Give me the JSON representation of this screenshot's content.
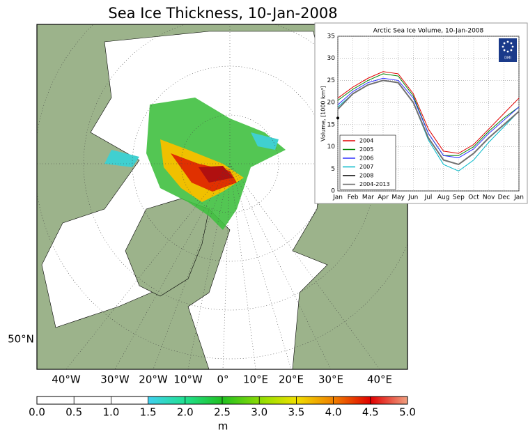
{
  "map": {
    "title": "Sea Ice Thickness, 10-Jan-2008",
    "longitude_labels": [
      "40°W",
      "30°W",
      "20°W",
      "10°W",
      "0°",
      "10°E",
      "20°E",
      "30°E",
      "40°E"
    ],
    "latitude_labels": [
      "50°N"
    ],
    "colorbar": {
      "label": "m",
      "lim": [
        0,
        5
      ],
      "ticks": [
        {
          "value": 0,
          "label": "0.0"
        },
        {
          "value": 0.5,
          "label": "0.5"
        },
        {
          "value": 1,
          "label": "1.0"
        },
        {
          "value": 1.5,
          "label": "1.5"
        },
        {
          "value": 2,
          "label": "2.0"
        },
        {
          "value": 2.5,
          "label": "2.5"
        },
        {
          "value": 3,
          "label": "3.0"
        },
        {
          "value": 3.5,
          "label": "3.5"
        },
        {
          "value": 4,
          "label": "4.0"
        },
        {
          "value": 4.5,
          "label": "4.5"
        },
        {
          "value": 5,
          "label": "5.0"
        }
      ]
    }
  },
  "chart_data": {
    "type": "line",
    "title": "Arctic Sea Ice Volume, 10-Jan-2008",
    "ylabel": "Volume, [1000 km³]",
    "logo_text": "DMI",
    "categories": [
      "Jan",
      "Feb",
      "Mar",
      "Apr",
      "May",
      "Jun",
      "Jul",
      "Aug",
      "Sep",
      "Oct",
      "Nov",
      "Dec",
      "Jan"
    ],
    "ylim": [
      0,
      35
    ],
    "yticks": [
      0,
      5,
      10,
      15,
      20,
      25,
      30,
      35
    ],
    "grid": true,
    "legend": "lower left",
    "series": [
      {
        "name": "2004",
        "color": "#e00000",
        "values": [
          21,
          23.5,
          25.5,
          27,
          26.5,
          22,
          14,
          9,
          8.5,
          10.5,
          14,
          17.5,
          21
        ]
      },
      {
        "name": "2005",
        "color": "#008000",
        "values": [
          20.5,
          23,
          25,
          26.5,
          26,
          21.5,
          13,
          8,
          8,
          10,
          13.5,
          16.5,
          19
        ]
      },
      {
        "name": "2006",
        "color": "#3030ff",
        "values": [
          19.5,
          22.5,
          24.5,
          25.5,
          25,
          21,
          13,
          8,
          7.5,
          9.5,
          13,
          16,
          19
        ]
      },
      {
        "name": "2007",
        "color": "#00b8c8",
        "values": [
          19,
          22,
          24,
          25,
          24.5,
          20,
          11.5,
          6,
          4.5,
          7,
          11,
          14.5,
          18
        ]
      },
      {
        "name": "2008",
        "color": "#000000",
        "values": [
          16.5,
          null,
          null,
          null,
          null,
          null,
          null,
          null,
          null,
          null,
          null,
          null,
          null
        ]
      },
      {
        "name": "2004-2013",
        "color": "#707070",
        "values": [
          18.5,
          22,
          24,
          25,
          24.5,
          20,
          12,
          7,
          6,
          8.5,
          12,
          15,
          18
        ]
      }
    ]
  }
}
